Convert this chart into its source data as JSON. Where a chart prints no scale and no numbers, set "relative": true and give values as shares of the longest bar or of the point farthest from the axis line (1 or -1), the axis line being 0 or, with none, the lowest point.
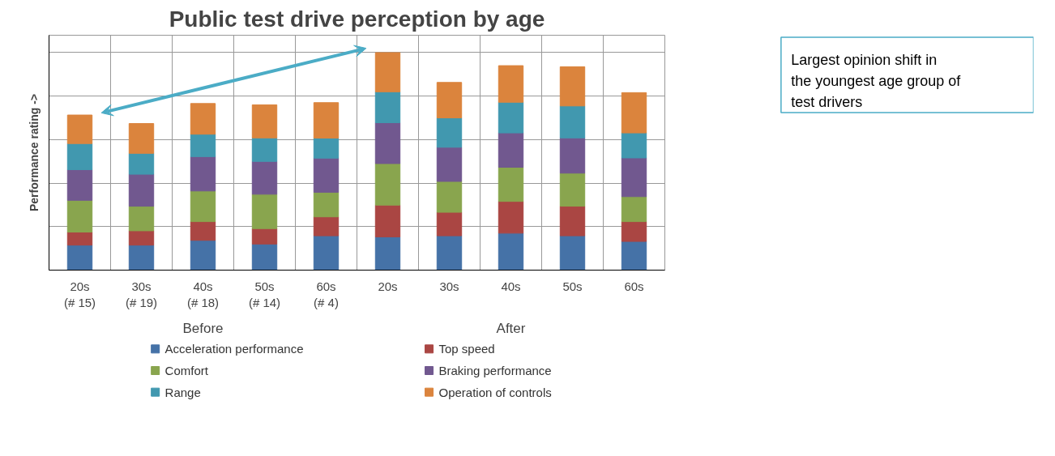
{
  "chart_data": {
    "type": "bar",
    "title": "Public test drive perception by age",
    "ylabel": "Performance rating ->",
    "categories": [
      "20s\n(# 15)",
      "30s\n(# 19)",
      "40s\n(# 18)",
      "50s\n(# 14)",
      "60s\n(# 4)",
      "20s",
      "30s",
      "40s",
      "50s",
      "60s"
    ],
    "stacked": true,
    "relative": true,
    "grid": true,
    "legend": "bottom",
    "series": [
      {
        "name": "Acceleration performance",
        "color": "#4572a7",
        "values": [
          0.115,
          0.115,
          0.137,
          0.12,
          0.158,
          0.153,
          0.158,
          0.17,
          0.158,
          0.132
        ]
      },
      {
        "name": "Top speed",
        "color": "#aa4643",
        "values": [
          0.06,
          0.066,
          0.086,
          0.071,
          0.087,
          0.146,
          0.108,
          0.146,
          0.136,
          0.091
        ]
      },
      {
        "name": "Comfort",
        "color": "#89a54e",
        "values": [
          0.146,
          0.113,
          0.141,
          0.158,
          0.113,
          0.191,
          0.142,
          0.157,
          0.152,
          0.115
        ]
      },
      {
        "name": "Braking performance",
        "color": "#71588f",
        "values": [
          0.141,
          0.147,
          0.158,
          0.151,
          0.157,
          0.188,
          0.157,
          0.158,
          0.162,
          0.178
        ]
      },
      {
        "name": "Range",
        "color": "#4198af",
        "values": [
          0.12,
          0.096,
          0.103,
          0.108,
          0.092,
          0.142,
          0.135,
          0.141,
          0.147,
          0.115
        ]
      },
      {
        "name": "Operation of controls",
        "color": "#db843d",
        "values": [
          0.131,
          0.137,
          0.141,
          0.152,
          0.163,
          0.18,
          0.163,
          0.168,
          0.18,
          0.185
        ]
      }
    ],
    "annotations": [
      "Before",
      "After",
      "Largest opinion shift in the youngest age group of test drivers"
    ]
  }
}
